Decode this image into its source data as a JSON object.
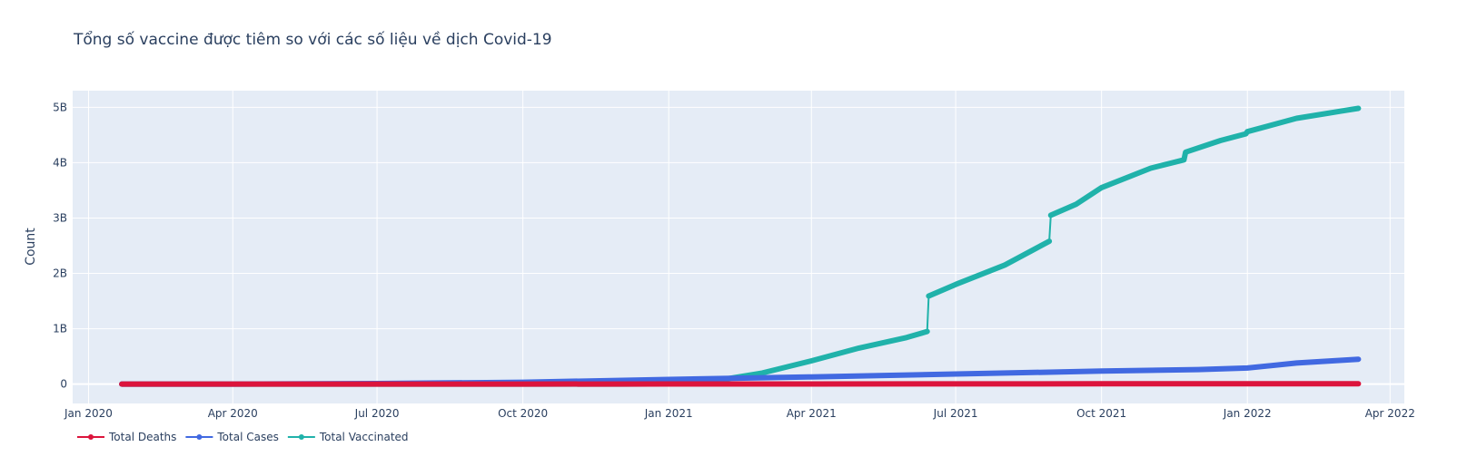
{
  "chart_data": {
    "type": "line",
    "title": "Tổng số vaccine được tiêm so với các số liệu về dịch Covid-19",
    "xlabel": "",
    "ylabel": "Count",
    "grid": true,
    "legend_position": "bottom-left",
    "background": "#e5ecf6",
    "x_type": "date",
    "xlim": [
      "2019-12-22",
      "2022-04-10"
    ],
    "ylim": [
      -350000000,
      5300000000
    ],
    "x_ticks": [
      {
        "date": "2020-01-01",
        "label": "Jan 2020"
      },
      {
        "date": "2020-04-01",
        "label": "Apr 2020"
      },
      {
        "date": "2020-07-01",
        "label": "Jul 2020"
      },
      {
        "date": "2020-10-01",
        "label": "Oct 2020"
      },
      {
        "date": "2021-01-01",
        "label": "Jan 2021"
      },
      {
        "date": "2021-04-01",
        "label": "Apr 2021"
      },
      {
        "date": "2021-07-01",
        "label": "Jul 2021"
      },
      {
        "date": "2021-10-01",
        "label": "Oct 2021"
      },
      {
        "date": "2022-01-01",
        "label": "Jan 2022"
      },
      {
        "date": "2022-04-01",
        "label": "Apr 2022"
      }
    ],
    "y_ticks": [
      {
        "value": 0,
        "label": "0"
      },
      {
        "value": 1000000000,
        "label": "1B"
      },
      {
        "value": 2000000000,
        "label": "2B"
      },
      {
        "value": 3000000000,
        "label": "3B"
      },
      {
        "value": 4000000000,
        "label": "4B"
      },
      {
        "value": 5000000000,
        "label": "5B"
      }
    ],
    "series": [
      {
        "name": "Total Deaths",
        "color": "#dc143c",
        "points": [
          [
            "2020-01-22",
            0
          ],
          [
            "2020-04-01",
            50000
          ],
          [
            "2020-07-01",
            500000
          ],
          [
            "2020-10-01",
            1000000
          ],
          [
            "2021-01-01",
            1900000
          ],
          [
            "2021-04-01",
            2800000
          ],
          [
            "2021-07-01",
            3900000
          ],
          [
            "2021-10-01",
            4800000
          ],
          [
            "2022-01-01",
            5400000
          ],
          [
            "2022-03-12",
            6000000
          ]
        ]
      },
      {
        "name": "Total Cases",
        "color": "#4169e1",
        "points": [
          [
            "2020-01-22",
            0
          ],
          [
            "2020-04-01",
            900000
          ],
          [
            "2020-07-01",
            10500000
          ],
          [
            "2020-10-01",
            34000000
          ],
          [
            "2021-01-01",
            84000000
          ],
          [
            "2021-04-01",
            130000000
          ],
          [
            "2021-07-01",
            183000000
          ],
          [
            "2021-10-01",
            234000000
          ],
          [
            "2021-12-01",
            263000000
          ],
          [
            "2022-01-01",
            290000000
          ],
          [
            "2022-02-01",
            380000000
          ],
          [
            "2022-03-12",
            450000000
          ]
        ]
      },
      {
        "name": "Total Vaccinated",
        "color": "#20b2aa",
        "points": [
          [
            "2020-01-22",
            0
          ],
          [
            "2020-12-01",
            0
          ],
          [
            "2020-12-20",
            2000000
          ],
          [
            "2021-01-15",
            30000000
          ],
          [
            "2021-02-01",
            70000000
          ],
          [
            "2021-03-01",
            200000000
          ],
          [
            "2021-04-01",
            420000000
          ],
          [
            "2021-05-01",
            650000000
          ],
          [
            "2021-05-31",
            840000000
          ],
          [
            "2021-06-13",
            950000000
          ],
          [
            "2021-06-14",
            1590000000
          ],
          [
            "2021-07-01",
            1800000000
          ],
          [
            "2021-08-01",
            2150000000
          ],
          [
            "2021-08-29",
            2580000000
          ],
          [
            "2021-08-30",
            3050000000
          ],
          [
            "2021-09-15",
            3250000000
          ],
          [
            "2021-10-01",
            3550000000
          ],
          [
            "2021-11-01",
            3900000000
          ],
          [
            "2021-11-22",
            4050000000
          ],
          [
            "2021-11-23",
            4190000000
          ],
          [
            "2021-12-15",
            4400000000
          ],
          [
            "2021-12-31",
            4520000000
          ],
          [
            "2022-01-01",
            4560000000
          ],
          [
            "2022-02-01",
            4800000000
          ],
          [
            "2022-03-01",
            4930000000
          ],
          [
            "2022-03-12",
            4980000000
          ]
        ]
      }
    ]
  }
}
